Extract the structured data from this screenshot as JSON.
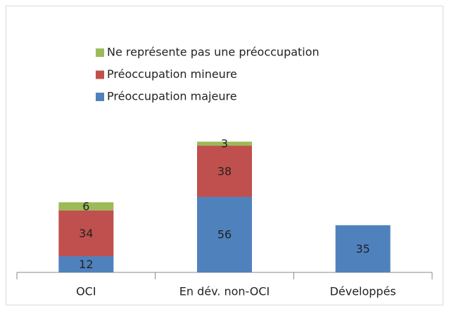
{
  "chart_data": {
    "type": "stacked_bar",
    "categories": [
      "OCI",
      "En dév. non-OCI",
      "Développés"
    ],
    "series": [
      {
        "name": "Préoccupation majeure",
        "color": "#4f81bd",
        "values": [
          12,
          56,
          35
        ]
      },
      {
        "name": "Préoccupation mineure",
        "color": "#c0504d",
        "values": [
          34,
          38,
          null
        ]
      },
      {
        "name": "Ne représente pas une préoccupation",
        "color": "#9bbb59",
        "values": [
          6,
          3,
          null
        ]
      }
    ],
    "legend": "top"
  }
}
